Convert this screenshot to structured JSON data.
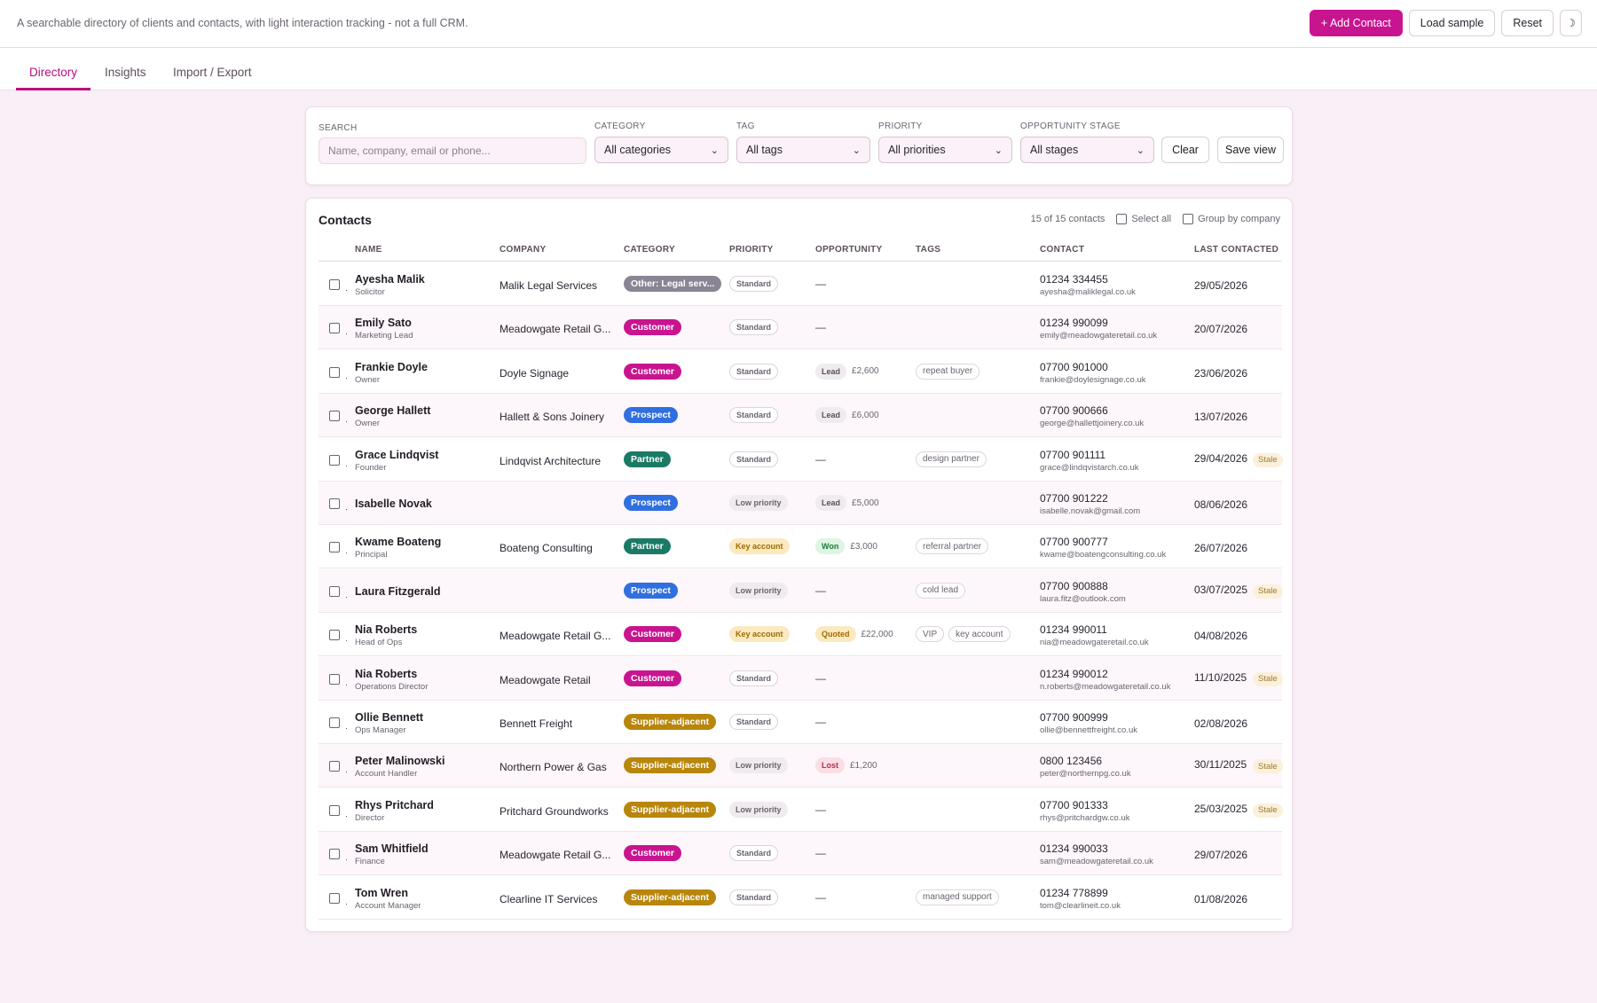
{
  "header": {
    "subtitle": "A searchable directory of clients and contacts, with light interaction tracking - not a full CRM.",
    "add_contact": "+ Add Contact",
    "load_sample": "Load sample",
    "reset": "Reset",
    "theme_icon": "moon-icon",
    "theme_glyph": "☽"
  },
  "tabs": [
    "Directory",
    "Insights",
    "Import / Export"
  ],
  "filters": {
    "search_label": "Search",
    "search_placeholder": "Name, company, email or phone...",
    "category_label": "Category",
    "category_value": "All categories",
    "tag_label": "Tag",
    "tag_value": "All tags",
    "priority_label": "Priority",
    "priority_value": "All priorities",
    "stage_label": "Opportunity stage",
    "stage_value": "All stages",
    "clear": "Clear",
    "save_view": "Save view"
  },
  "contacts_panel": {
    "title": "Contacts",
    "count": "15 of 15 contacts",
    "select_all": "Select all",
    "group_by_company": "Group by company",
    "columns": [
      "Name",
      "Company",
      "Category",
      "Priority",
      "Opportunity",
      "Tags",
      "Contact",
      "Last contacted"
    ]
  },
  "colors": {
    "accent": "#c9148f",
    "other": "#8a8594",
    "customer": "#c9148f",
    "prospect": "#2f6fe0",
    "partner": "#1b7a66",
    "supplier": "#b8860b"
  },
  "rows": [
    {
      "name": "Ayesha Malik",
      "role": "Solicitor",
      "company": "Malik Legal Services",
      "category": "Other: Legal serv...",
      "cat_key": "other",
      "priority": "Standard",
      "pri_key": "std",
      "stage": "",
      "amount": "",
      "tags": [],
      "phone": "01234 334455",
      "email": "ayesha@maliklegal.co.uk",
      "last": "29/05/2026",
      "stale": ""
    },
    {
      "name": "Emily Sato",
      "role": "Marketing Lead",
      "company": "Meadowgate Retail G...",
      "category": "Customer",
      "cat_key": "customer",
      "priority": "Standard",
      "pri_key": "std",
      "stage": "",
      "amount": "",
      "tags": [],
      "phone": "01234 990099",
      "email": "emily@meadowgateretail.co.uk",
      "last": "20/07/2026",
      "stale": ""
    },
    {
      "name": "Frankie Doyle",
      "role": "Owner",
      "company": "Doyle Signage",
      "category": "Customer",
      "cat_key": "customer",
      "priority": "Standard",
      "pri_key": "std",
      "stage": "Lead",
      "stage_key": "lead",
      "amount": "£2,600",
      "tags": [
        "repeat buyer"
      ],
      "phone": "07700 901000",
      "email": "frankie@doylesignage.co.uk",
      "last": "23/06/2026",
      "stale": ""
    },
    {
      "name": "George Hallett",
      "role": "Owner",
      "company": "Hallett & Sons Joinery",
      "category": "Prospect",
      "cat_key": "prospect",
      "priority": "Standard",
      "pri_key": "std",
      "stage": "Lead",
      "stage_key": "lead",
      "amount": "£6,000",
      "tags": [],
      "phone": "07700 900666",
      "email": "george@hallettjoinery.co.uk",
      "last": "13/07/2026",
      "stale": ""
    },
    {
      "name": "Grace Lindqvist",
      "role": "Founder",
      "company": "Lindqvist Architecture",
      "category": "Partner",
      "cat_key": "partner",
      "priority": "Standard",
      "pri_key": "std",
      "stage": "",
      "amount": "",
      "tags": [
        "design partner"
      ],
      "phone": "07700 901111",
      "email": "grace@lindqvistarch.co.uk",
      "last": "29/04/2026",
      "stale": "Stale"
    },
    {
      "name": "Isabelle Novak",
      "role": "",
      "company": "",
      "category": "Prospect",
      "cat_key": "prospect",
      "priority": "Low priority",
      "pri_key": "low",
      "stage": "Lead",
      "stage_key": "lead",
      "amount": "£5,000",
      "tags": [],
      "phone": "07700 901222",
      "email": "isabelle.novak@gmail.com",
      "last": "08/06/2026",
      "stale": ""
    },
    {
      "name": "Kwame Boateng",
      "role": "Principal",
      "company": "Boateng Consulting",
      "category": "Partner",
      "cat_key": "partner",
      "priority": "Key account",
      "pri_key": "key",
      "stage": "Won",
      "stage_key": "won",
      "amount": "£3,000",
      "tags": [
        "referral partner"
      ],
      "phone": "07700 900777",
      "email": "kwame@boatengconsulting.co.uk",
      "last": "26/07/2026",
      "stale": ""
    },
    {
      "name": "Laura Fitzgerald",
      "role": "",
      "company": "",
      "category": "Prospect",
      "cat_key": "prospect",
      "priority": "Low priority",
      "pri_key": "low",
      "stage": "",
      "amount": "",
      "tags": [
        "cold lead"
      ],
      "phone": "07700 900888",
      "email": "laura.fitz@outlook.com",
      "last": "03/07/2025",
      "stale": "Stale"
    },
    {
      "name": "Nia Roberts",
      "role": "Head of Ops",
      "company": "Meadowgate Retail G...",
      "category": "Customer",
      "cat_key": "customer",
      "priority": "Key account",
      "pri_key": "key",
      "stage": "Quoted",
      "stage_key": "quoted",
      "amount": "£22,000",
      "tags": [
        "VIP",
        "key account"
      ],
      "phone": "01234 990011",
      "email": "nia@meadowgateretail.co.uk",
      "last": "04/08/2026",
      "stale": ""
    },
    {
      "name": "Nia Roberts",
      "role": "Operations Director",
      "company": "Meadowgate Retail",
      "category": "Customer",
      "cat_key": "customer",
      "priority": "Standard",
      "pri_key": "std",
      "stage": "",
      "amount": "",
      "tags": [],
      "phone": "01234 990012",
      "email": "n.roberts@meadowgateretail.co.uk",
      "last": "11/10/2025",
      "stale": "Stale"
    },
    {
      "name": "Ollie Bennett",
      "role": "Ops Manager",
      "company": "Bennett Freight",
      "category": "Supplier-adjacent",
      "cat_key": "supplier",
      "priority": "Standard",
      "pri_key": "std",
      "stage": "",
      "amount": "",
      "tags": [],
      "phone": "07700 900999",
      "email": "ollie@bennettfreight.co.uk",
      "last": "02/08/2026",
      "stale": ""
    },
    {
      "name": "Peter Malinowski",
      "role": "Account Handler",
      "company": "Northern Power & Gas",
      "category": "Supplier-adjacent",
      "cat_key": "supplier",
      "priority": "Low priority",
      "pri_key": "low",
      "stage": "Lost",
      "stage_key": "lost",
      "amount": "£1,200",
      "tags": [],
      "phone": "0800 123456",
      "email": "peter@northernpg.co.uk",
      "last": "30/11/2025",
      "stale": "Stale"
    },
    {
      "name": "Rhys Pritchard",
      "role": "Director",
      "company": "Pritchard Groundworks",
      "category": "Supplier-adjacent",
      "cat_key": "supplier",
      "priority": "Low priority",
      "pri_key": "low",
      "stage": "",
      "amount": "",
      "tags": [],
      "phone": "07700 901333",
      "email": "rhys@pritchardgw.co.uk",
      "last": "25/03/2025",
      "stale": "Stale"
    },
    {
      "name": "Sam Whitfield",
      "role": "Finance",
      "company": "Meadowgate Retail G...",
      "category": "Customer",
      "cat_key": "customer",
      "priority": "Standard",
      "pri_key": "std",
      "stage": "",
      "amount": "",
      "tags": [],
      "phone": "01234 990033",
      "email": "sam@meadowgateretail.co.uk",
      "last": "29/07/2026",
      "stale": ""
    },
    {
      "name": "Tom Wren",
      "role": "Account Manager",
      "company": "Clearline IT Services",
      "category": "Supplier-adjacent",
      "cat_key": "supplier",
      "priority": "Standard",
      "pri_key": "std",
      "stage": "",
      "amount": "",
      "tags": [
        "managed support"
      ],
      "phone": "01234 778899",
      "email": "tom@clearlineit.co.uk",
      "last": "01/08/2026",
      "stale": ""
    }
  ]
}
